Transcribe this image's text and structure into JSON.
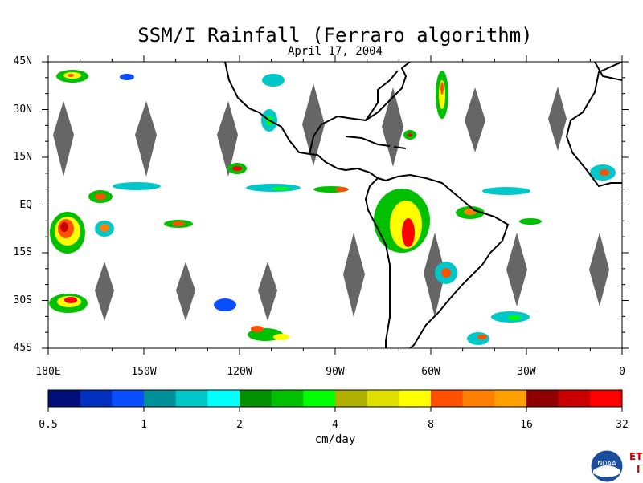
{
  "map": {
    "title": "SSM/I Rainfall (Ferraro algorithm)",
    "date": "April 17, 2004",
    "lat_labels": [
      "45N",
      "30N",
      "15N",
      "EQ",
      "15S",
      "30S",
      "45S"
    ],
    "lat_values": [
      45,
      30,
      15,
      0,
      -15,
      -30,
      -45
    ],
    "lon_labels": [
      "180E",
      "150W",
      "120W",
      "90W",
      "60W",
      "30W",
      "0"
    ],
    "lon_values": [
      -180,
      -150,
      -120,
      -90,
      -60,
      -30,
      0
    ],
    "colorbar": {
      "unit_label": "cm/day",
      "tick_labels": [
        "0.5",
        "1",
        "2",
        "4",
        "8",
        "16",
        "32"
      ],
      "colors": [
        "#000e7a",
        "#0030c0",
        "#0a4eff",
        "#00909a",
        "#00c8c8",
        "#00ffff",
        "#009000",
        "#00c000",
        "#00ff00",
        "#b0b000",
        "#e0e000",
        "#ffff00",
        "#ff5000",
        "#ff8000",
        "#ffa000",
        "#900000",
        "#c80000",
        "#ff0000"
      ]
    },
    "colors": {
      "land_outline": "#000000",
      "data_gap": "#666666",
      "background": "#ffffff"
    },
    "logos": {
      "agency": "NOAA",
      "corner_mark": "ET",
      "corner_mark_sub": "I"
    }
  }
}
